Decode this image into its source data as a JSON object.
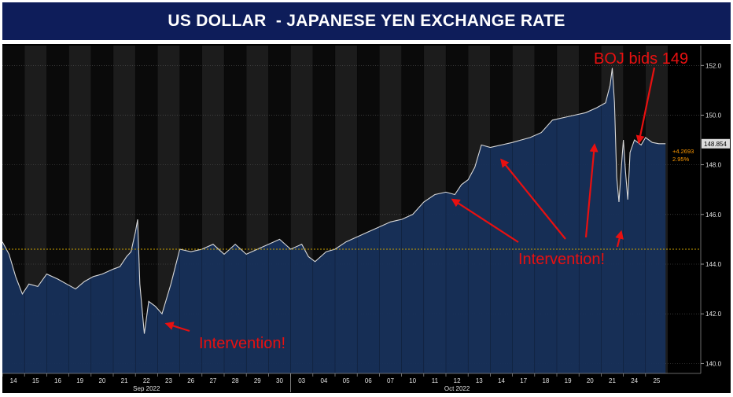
{
  "title": "US DOLLAR  - JAPANESE YEN EXCHANGE RATE",
  "chart_data": {
    "type": "area",
    "ylim": [
      139.6,
      152.8
    ],
    "yticks": [
      140.0,
      142.0,
      144.0,
      146.0,
      148.0,
      150.0,
      152.0
    ],
    "sessions": [
      {
        "label": "14",
        "shaded": false
      },
      {
        "label": "15",
        "shaded": true
      },
      {
        "label": "16",
        "shaded": false
      },
      {
        "label": "19",
        "shaded": true
      },
      {
        "label": "20",
        "shaded": false
      },
      {
        "label": "21",
        "shaded": true
      },
      {
        "label": "22",
        "shaded": false
      },
      {
        "label": "23",
        "shaded": true
      },
      {
        "label": "26",
        "shaded": false
      },
      {
        "label": "27",
        "shaded": true
      },
      {
        "label": "28",
        "shaded": false
      },
      {
        "label": "29",
        "shaded": true
      },
      {
        "label": "30",
        "shaded": false
      },
      {
        "label": "03",
        "shaded": true
      },
      {
        "label": "04",
        "shaded": false
      },
      {
        "label": "05",
        "shaded": true
      },
      {
        "label": "06",
        "shaded": false
      },
      {
        "label": "07",
        "shaded": true
      },
      {
        "label": "10",
        "shaded": false
      },
      {
        "label": "11",
        "shaded": true
      },
      {
        "label": "12",
        "shaded": false
      },
      {
        "label": "13",
        "shaded": true
      },
      {
        "label": "14",
        "shaded": false
      },
      {
        "label": "17",
        "shaded": true
      },
      {
        "label": "18",
        "shaded": false
      },
      {
        "label": "19",
        "shaded": true
      },
      {
        "label": "20",
        "shaded": false
      },
      {
        "label": "21",
        "shaded": true
      },
      {
        "label": "24",
        "shaded": false
      },
      {
        "label": "25",
        "shaded": true
      }
    ],
    "month_labels": [
      {
        "label": "Sep 2022",
        "session_index": 6
      },
      {
        "label": "Oct 2022",
        "session_index": 20
      }
    ],
    "series": [
      {
        "values": [
          {
            "x": 0.0,
            "y": 144.9
          },
          {
            "x": 0.3,
            "y": 144.4
          },
          {
            "x": 0.6,
            "y": 143.5
          },
          {
            "x": 0.9,
            "y": 142.8
          },
          {
            "x": 1.2,
            "y": 143.2
          },
          {
            "x": 1.6,
            "y": 143.1
          },
          {
            "x": 2.0,
            "y": 143.6
          },
          {
            "x": 2.5,
            "y": 143.4
          },
          {
            "x": 2.9,
            "y": 143.2
          },
          {
            "x": 3.3,
            "y": 143.0
          },
          {
            "x": 3.7,
            "y": 143.3
          },
          {
            "x": 4.1,
            "y": 143.5
          },
          {
            "x": 4.5,
            "y": 143.6
          },
          {
            "x": 5.0,
            "y": 143.8
          },
          {
            "x": 5.3,
            "y": 143.9
          },
          {
            "x": 5.6,
            "y": 144.3
          },
          {
            "x": 5.8,
            "y": 144.5
          },
          {
            "x": 6.0,
            "y": 145.3
          },
          {
            "x": 6.1,
            "y": 145.8
          },
          {
            "x": 6.2,
            "y": 143.2
          },
          {
            "x": 6.4,
            "y": 141.2
          },
          {
            "x": 6.6,
            "y": 142.5
          },
          {
            "x": 6.9,
            "y": 142.3
          },
          {
            "x": 7.2,
            "y": 142.0
          },
          {
            "x": 7.6,
            "y": 143.2
          },
          {
            "x": 8.0,
            "y": 144.6
          },
          {
            "x": 8.5,
            "y": 144.5
          },
          {
            "x": 9.0,
            "y": 144.6
          },
          {
            "x": 9.5,
            "y": 144.8
          },
          {
            "x": 10.0,
            "y": 144.4
          },
          {
            "x": 10.5,
            "y": 144.8
          },
          {
            "x": 11.0,
            "y": 144.4
          },
          {
            "x": 11.5,
            "y": 144.6
          },
          {
            "x": 12.0,
            "y": 144.8
          },
          {
            "x": 12.5,
            "y": 145.0
          },
          {
            "x": 13.0,
            "y": 144.6
          },
          {
            "x": 13.5,
            "y": 144.8
          },
          {
            "x": 13.8,
            "y": 144.3
          },
          {
            "x": 14.1,
            "y": 144.1
          },
          {
            "x": 14.6,
            "y": 144.5
          },
          {
            "x": 15.0,
            "y": 144.6
          },
          {
            "x": 15.5,
            "y": 144.9
          },
          {
            "x": 16.0,
            "y": 145.1
          },
          {
            "x": 16.5,
            "y": 145.3
          },
          {
            "x": 17.0,
            "y": 145.5
          },
          {
            "x": 17.5,
            "y": 145.7
          },
          {
            "x": 18.0,
            "y": 145.8
          },
          {
            "x": 18.5,
            "y": 146.0
          },
          {
            "x": 19.0,
            "y": 146.5
          },
          {
            "x": 19.5,
            "y": 146.8
          },
          {
            "x": 20.0,
            "y": 146.9
          },
          {
            "x": 20.4,
            "y": 146.8
          },
          {
            "x": 20.7,
            "y": 147.2
          },
          {
            "x": 21.0,
            "y": 147.4
          },
          {
            "x": 21.3,
            "y": 147.9
          },
          {
            "x": 21.6,
            "y": 148.8
          },
          {
            "x": 22.0,
            "y": 148.7
          },
          {
            "x": 22.5,
            "y": 148.8
          },
          {
            "x": 23.0,
            "y": 148.9
          },
          {
            "x": 23.4,
            "y": 149.0
          },
          {
            "x": 23.8,
            "y": 149.1
          },
          {
            "x": 24.3,
            "y": 149.3
          },
          {
            "x": 24.8,
            "y": 149.8
          },
          {
            "x": 25.3,
            "y": 149.9
          },
          {
            "x": 25.8,
            "y": 150.0
          },
          {
            "x": 26.3,
            "y": 150.1
          },
          {
            "x": 26.8,
            "y": 150.3
          },
          {
            "x": 27.2,
            "y": 150.5
          },
          {
            "x": 27.4,
            "y": 151.2
          },
          {
            "x": 27.5,
            "y": 151.9
          },
          {
            "x": 27.6,
            "y": 150.5
          },
          {
            "x": 27.7,
            "y": 147.5
          },
          {
            "x": 27.8,
            "y": 146.5
          },
          {
            "x": 27.9,
            "y": 147.8
          },
          {
            "x": 28.0,
            "y": 149.0
          },
          {
            "x": 28.1,
            "y": 147.7
          },
          {
            "x": 28.2,
            "y": 146.6
          },
          {
            "x": 28.3,
            "y": 148.5
          },
          {
            "x": 28.5,
            "y": 149.0
          },
          {
            "x": 28.8,
            "y": 148.8
          },
          {
            "x": 29.0,
            "y": 149.1
          },
          {
            "x": 29.3,
            "y": 148.9
          },
          {
            "x": 29.6,
            "y": 148.85
          },
          {
            "x": 29.9,
            "y": 148.85
          }
        ]
      }
    ],
    "reference_line": {
      "y": 144.6
    },
    "last_value_label": "148.854",
    "change_labels": [
      "+4.2693",
      "2.95%"
    ],
    "annotations": [
      {
        "text": "BOJ bids 149",
        "arrow_to": {
          "x": 28.7,
          "y": 148.9
        }
      },
      {
        "text": "Intervention!",
        "arrows_to": [
          {
            "x": 7.4,
            "y": 141.6
          }
        ]
      },
      {
        "text": "Intervention!",
        "arrows_to": [
          {
            "x": 20.3,
            "y": 146.6
          },
          {
            "x": 22.5,
            "y": 148.2
          },
          {
            "x": 26.7,
            "y": 148.8
          },
          {
            "x": 27.9,
            "y": 145.3
          }
        ]
      }
    ],
    "colors": {
      "up_area": "#17305a",
      "line": "#d8d8d8",
      "reference": "#c8a000",
      "arrow": "#e81010",
      "annotation_text": "#e81010",
      "change_text": "#ff9900"
    }
  }
}
